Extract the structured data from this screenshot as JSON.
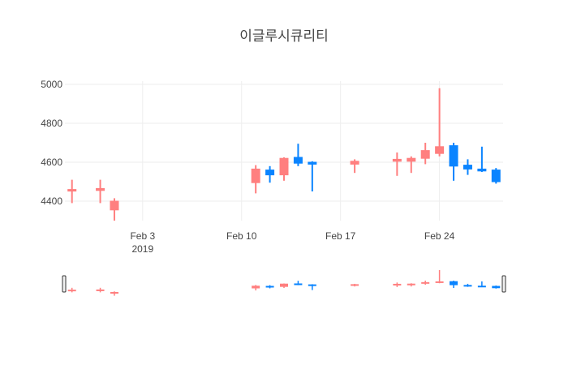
{
  "chart_data": {
    "type": "candlestick",
    "title": "이글루시큐리티",
    "xlabel": "",
    "ylabel": "",
    "ylim": [
      4270,
      5100
    ],
    "y_ticks": [
      4400,
      4600,
      4800,
      5000
    ],
    "x_range": [
      "2019-01-28T12:00",
      "2019-02-28T12:00"
    ],
    "x_ticks": [
      {
        "date": "2019-02-03",
        "label": "Feb 3",
        "sublabel": "2019"
      },
      {
        "date": "2019-02-10",
        "label": "Feb 10",
        "sublabel": ""
      },
      {
        "date": "2019-02-17",
        "label": "Feb 17",
        "sublabel": ""
      },
      {
        "date": "2019-02-24",
        "label": "Feb 24",
        "sublabel": ""
      }
    ],
    "grid": true,
    "legend": "none",
    "rangeslider": true,
    "increasing_color": "#0A84FF",
    "decreasing_color": "#FF7F7F",
    "candles": [
      {
        "date": "2019-01-29",
        "open": 4460,
        "high": 4510,
        "low": 4390,
        "close": 4455
      },
      {
        "date": "2019-01-31",
        "open": 4465,
        "high": 4510,
        "low": 4390,
        "close": 4455
      },
      {
        "date": "2019-02-01",
        "open": 4400,
        "high": 4415,
        "low": 4300,
        "close": 4355
      },
      {
        "date": "2019-02-11",
        "open": 4565,
        "high": 4585,
        "low": 4440,
        "close": 4495
      },
      {
        "date": "2019-02-12",
        "open": 4535,
        "high": 4580,
        "low": 4495,
        "close": 4560
      },
      {
        "date": "2019-02-13",
        "open": 4620,
        "high": 4625,
        "low": 4505,
        "close": 4535
      },
      {
        "date": "2019-02-14",
        "open": 4595,
        "high": 4695,
        "low": 4580,
        "close": 4625
      },
      {
        "date": "2019-02-15",
        "open": 4590,
        "high": 4605,
        "low": 4450,
        "close": 4600
      },
      {
        "date": "2019-02-18",
        "open": 4605,
        "high": 4615,
        "low": 4545,
        "close": 4590
      },
      {
        "date": "2019-02-21",
        "open": 4615,
        "high": 4650,
        "low": 4530,
        "close": 4605
      },
      {
        "date": "2019-02-22",
        "open": 4620,
        "high": 4630,
        "low": 4545,
        "close": 4605
      },
      {
        "date": "2019-02-23",
        "open": 4660,
        "high": 4700,
        "low": 4590,
        "close": 4620
      },
      {
        "date": "2019-02-24",
        "open": 4680,
        "high": 4980,
        "low": 4630,
        "close": 4645
      },
      {
        "date": "2019-02-25",
        "open": 4580,
        "high": 4700,
        "low": 4505,
        "close": 4685
      },
      {
        "date": "2019-02-26",
        "open": 4565,
        "high": 4615,
        "low": 4535,
        "close": 4585
      },
      {
        "date": "2019-02-27",
        "open": 4555,
        "high": 4680,
        "low": 4550,
        "close": 4565
      },
      {
        "date": "2019-02-28",
        "open": 4500,
        "high": 4570,
        "low": 4490,
        "close": 4560
      }
    ]
  }
}
